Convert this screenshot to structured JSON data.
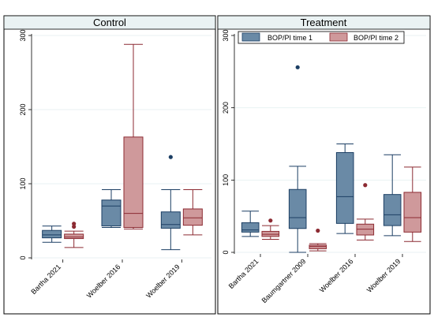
{
  "chart_data": {
    "type": "box",
    "colors": {
      "time1_fill": "#6a8aa6",
      "time1_stroke": "#1c3f64",
      "time2_fill": "#cf999b",
      "time2_stroke": "#8c2a32",
      "strip_bg": "#eaf2f3",
      "grid": "#eaf2f3"
    },
    "legend": {
      "position": "top-right",
      "entries": [
        "BOP/PI time 1",
        "BOP/PI time 2"
      ]
    },
    "yaxis": {
      "ylim": [
        0,
        300
      ],
      "ticks": [
        "0",
        "100",
        "200",
        "300"
      ]
    },
    "panels": [
      {
        "title": "Control",
        "show_legend": false,
        "categories": [
          {
            "label": "Bartha 2021",
            "time1": {
              "min": 21,
              "q1": 27,
              "median": 31,
              "q3": 37,
              "max": 43,
              "outliers": []
            },
            "time2": {
              "min": 14,
              "q1": 26,
              "median": 28,
              "q3": 32,
              "max": 36,
              "outliers": [
                42,
                46
              ]
            }
          },
          {
            "label": "Woelber 2016",
            "time1": {
              "min": 41,
              "q1": 43,
              "median": 70,
              "q3": 78,
              "max": 92,
              "outliers": []
            },
            "time2": {
              "min": 39,
              "q1": 41,
              "median": 60,
              "q3": 163,
              "max": 288,
              "outliers": []
            }
          },
          {
            "label": "Woelber 2019",
            "time1": {
              "min": 11,
              "q1": 40,
              "median": 45,
              "q3": 62,
              "max": 92,
              "outliers": [
                136
              ]
            },
            "time2": {
              "min": 31,
              "q1": 44,
              "median": 54,
              "q3": 66,
              "max": 92,
              "outliers": []
            }
          }
        ]
      },
      {
        "title": "Treatment",
        "show_legend": true,
        "categories": [
          {
            "label": "Bartha 2021",
            "time1": {
              "min": 22,
              "q1": 28,
              "median": 31,
              "q3": 41,
              "max": 57,
              "outliers": []
            },
            "time2": {
              "min": 18,
              "q1": 22,
              "median": 25,
              "q3": 29,
              "max": 37,
              "outliers": [
                44
              ]
            }
          },
          {
            "label": "Baumgartner 2009",
            "time1": {
              "min": 0,
              "q1": 33,
              "median": 48,
              "q3": 87,
              "max": 119,
              "outliers": [
                256
              ]
            },
            "time2": {
              "min": 2,
              "q1": 5,
              "median": 8,
              "q3": 10,
              "max": 12,
              "outliers": [
                30
              ]
            }
          },
          {
            "label": "Woelber 2016",
            "time1": {
              "min": 26,
              "q1": 40,
              "median": 77,
              "q3": 138,
              "max": 150,
              "outliers": []
            },
            "time2": {
              "min": 17,
              "q1": 24,
              "median": 32,
              "q3": 39,
              "max": 46,
              "outliers": [
                93
              ]
            }
          },
          {
            "label": "Woelber 2019",
            "time1": {
              "min": 23,
              "q1": 37,
              "median": 52,
              "q3": 80,
              "max": 135,
              "outliers": []
            },
            "time2": {
              "min": 15,
              "q1": 28,
              "median": 48,
              "q3": 83,
              "max": 118,
              "outliers": []
            }
          }
        ]
      }
    ]
  }
}
